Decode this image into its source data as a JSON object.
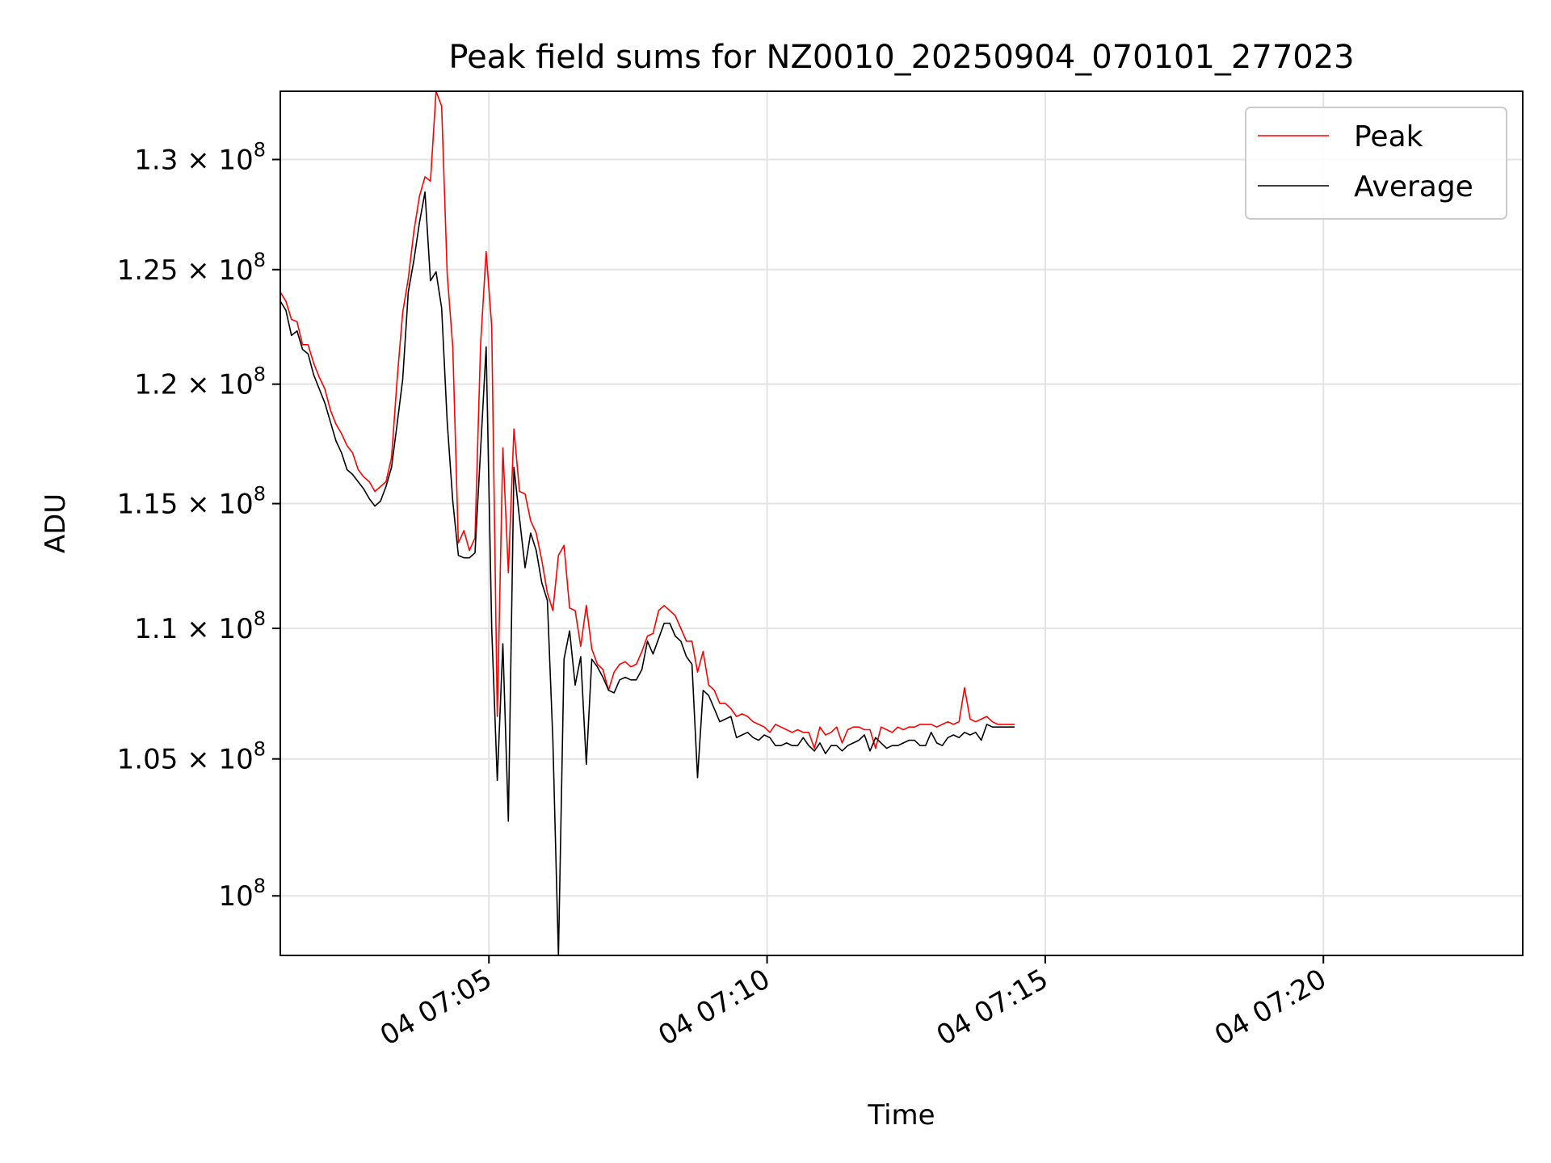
{
  "chart_data": {
    "type": "line",
    "title": "Peak field sums for NZ0010_20250904_070101_277023",
    "xlabel": "Time",
    "ylabel": "ADU",
    "x_start": "2025-09-04 07:01:15",
    "x_step_seconds": 6,
    "xlim": [
      "2025-09-04 07:01:15",
      "2025-09-04 07:23:35"
    ],
    "ylim": [
      97900000,
      133200000
    ],
    "yscale": "log",
    "grid": true,
    "legend_position": "upper right",
    "x_ticks": [
      {
        "value": "2025-09-04 07:05:00",
        "label": "04 07:05"
      },
      {
        "value": "2025-09-04 07:10:00",
        "label": "04 07:10"
      },
      {
        "value": "2025-09-04 07:15:00",
        "label": "04 07:15"
      },
      {
        "value": "2025-09-04 07:20:00",
        "label": "04 07:20"
      }
    ],
    "y_ticks": [
      {
        "value": 100000000,
        "mantissa": "",
        "exp": "8"
      },
      {
        "value": 105000000,
        "mantissa": "1.05",
        "exp": "8"
      },
      {
        "value": 110000000,
        "mantissa": "1.1",
        "exp": "8"
      },
      {
        "value": 115000000,
        "mantissa": "1.15",
        "exp": "8"
      },
      {
        "value": 120000000,
        "mantissa": "1.2",
        "exp": "8"
      },
      {
        "value": 125000000,
        "mantissa": "1.25",
        "exp": "8"
      },
      {
        "value": 130000000,
        "mantissa": "1.3",
        "exp": "8"
      }
    ],
    "series": [
      {
        "name": "Peak",
        "color": "#ff0000",
        "values": [
          124000000,
          123600000,
          122800000,
          122700000,
          121700000,
          121700000,
          120900000,
          120300000,
          119800000,
          118900000,
          118300000,
          117900000,
          117400000,
          117100000,
          116400000,
          116100000,
          115900000,
          115500000,
          115700000,
          115900000,
          116900000,
          120200000,
          123100000,
          124600000,
          126700000,
          128300000,
          129200000,
          129000000,
          133200000,
          132500000,
          124800000,
          121600000,
          113400000,
          113900000,
          113100000,
          113600000,
          121700000,
          125800000,
          122500000,
          106600000,
          117300000,
          112200000,
          118100000,
          115500000,
          115400000,
          114300000,
          113800000,
          112700000,
          111400000,
          110700000,
          112900000,
          113300000,
          110800000,
          110700000,
          109300000,
          110900000,
          109200000,
          108600000,
          108400000,
          107600000,
          108300000,
          108600000,
          108700000,
          108500000,
          108600000,
          109100000,
          109700000,
          109800000,
          110700000,
          110900000,
          110700000,
          110500000,
          110000000,
          109500000,
          109500000,
          108300000,
          109100000,
          107800000,
          107600000,
          107100000,
          107100000,
          106900000,
          106600000,
          106700000,
          106600000,
          106400000,
          106300000,
          106200000,
          106000000,
          106300000,
          106200000,
          106100000,
          106000000,
          106100000,
          106000000,
          106000000,
          105400000,
          106200000,
          105900000,
          106000000,
          106200000,
          105600000,
          106100000,
          106200000,
          106200000,
          106100000,
          106100000,
          105400000,
          106200000,
          106100000,
          106000000,
          106200000,
          106100000,
          106200000,
          106200000,
          106300000,
          106300000,
          106300000,
          106200000,
          106300000,
          106400000,
          106300000,
          106400000,
          107700000,
          106500000,
          106400000,
          106500000,
          106600000,
          106400000,
          106300000,
          106300000,
          106300000,
          106300000
        ]
      },
      {
        "name": "Average",
        "color": "#000000",
        "values": [
          123600000,
          123200000,
          122100000,
          122300000,
          121500000,
          121300000,
          120400000,
          119800000,
          119200000,
          118400000,
          117600000,
          117100000,
          116400000,
          116200000,
          115900000,
          115600000,
          115200000,
          114900000,
          115100000,
          115700000,
          116500000,
          118300000,
          120200000,
          124000000,
          125400000,
          127100000,
          128500000,
          124500000,
          124900000,
          123300000,
          118400000,
          115100000,
          112900000,
          112800000,
          112800000,
          113000000,
          117200000,
          121600000,
          110000000,
          104200000,
          109400000,
          102700000,
          116500000,
          114400000,
          112400000,
          113800000,
          113100000,
          111800000,
          111100000,
          105700000,
          97900000,
          108800000,
          109900000,
          107800000,
          108900000,
          104800000,
          108800000,
          108500000,
          108100000,
          107600000,
          107500000,
          108000000,
          108100000,
          108000000,
          108000000,
          108400000,
          109500000,
          109000000,
          109600000,
          110200000,
          110200000,
          109700000,
          109500000,
          108900000,
          108600000,
          104300000,
          107600000,
          107400000,
          106900000,
          106400000,
          106500000,
          106600000,
          105800000,
          105900000,
          106000000,
          105800000,
          105700000,
          105900000,
          105800000,
          105500000,
          105500000,
          105600000,
          105500000,
          105500000,
          105800000,
          105500000,
          105300000,
          105600000,
          105200000,
          105500000,
          105500000,
          105300000,
          105500000,
          105600000,
          105700000,
          105900000,
          105300000,
          105800000,
          105600000,
          105400000,
          105500000,
          105500000,
          105600000,
          105700000,
          105700000,
          105500000,
          105500000,
          106000000,
          105600000,
          105500000,
          105800000,
          105900000,
          105800000,
          106000000,
          105900000,
          106000000,
          105700000,
          106300000,
          106200000,
          106200000,
          106200000,
          106200000,
          106200000
        ]
      }
    ]
  }
}
